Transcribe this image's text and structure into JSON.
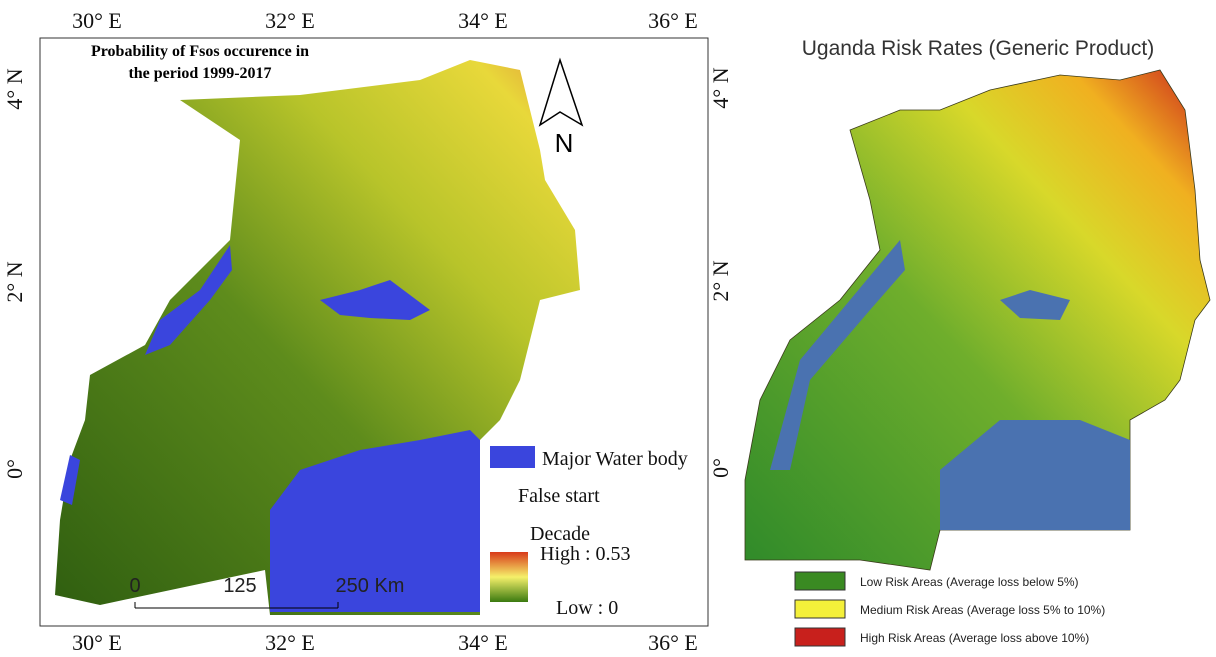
{
  "left_map": {
    "title_lines": [
      "Probability of Fsos occurence in",
      "the period 1999-2017"
    ],
    "top_labels": [
      "30° E",
      "32° E",
      "34° E",
      "36° E"
    ],
    "bottom_labels": [
      "30° E",
      "32° E",
      "34° E",
      "36° E"
    ],
    "left_labels": [
      "4° N",
      "2° N",
      "0°"
    ],
    "right_labels": [
      "4° N",
      "2° N",
      "0°"
    ],
    "north": "N",
    "scale_labels": [
      "0",
      "125",
      "250 Km"
    ],
    "legend": {
      "water": "Major Water body",
      "false_start": "False start",
      "decade": "Decade",
      "high": "High : 0.53",
      "low": "Low : 0"
    }
  },
  "right_map": {
    "title": "Uganda Risk Rates (Generic Product)",
    "legend": [
      "Low Risk Areas (Average loss below 5%)",
      "Medium Risk Areas (Average loss 5% to 10%)",
      "High Risk Areas (Average loss above 10%)"
    ]
  }
}
